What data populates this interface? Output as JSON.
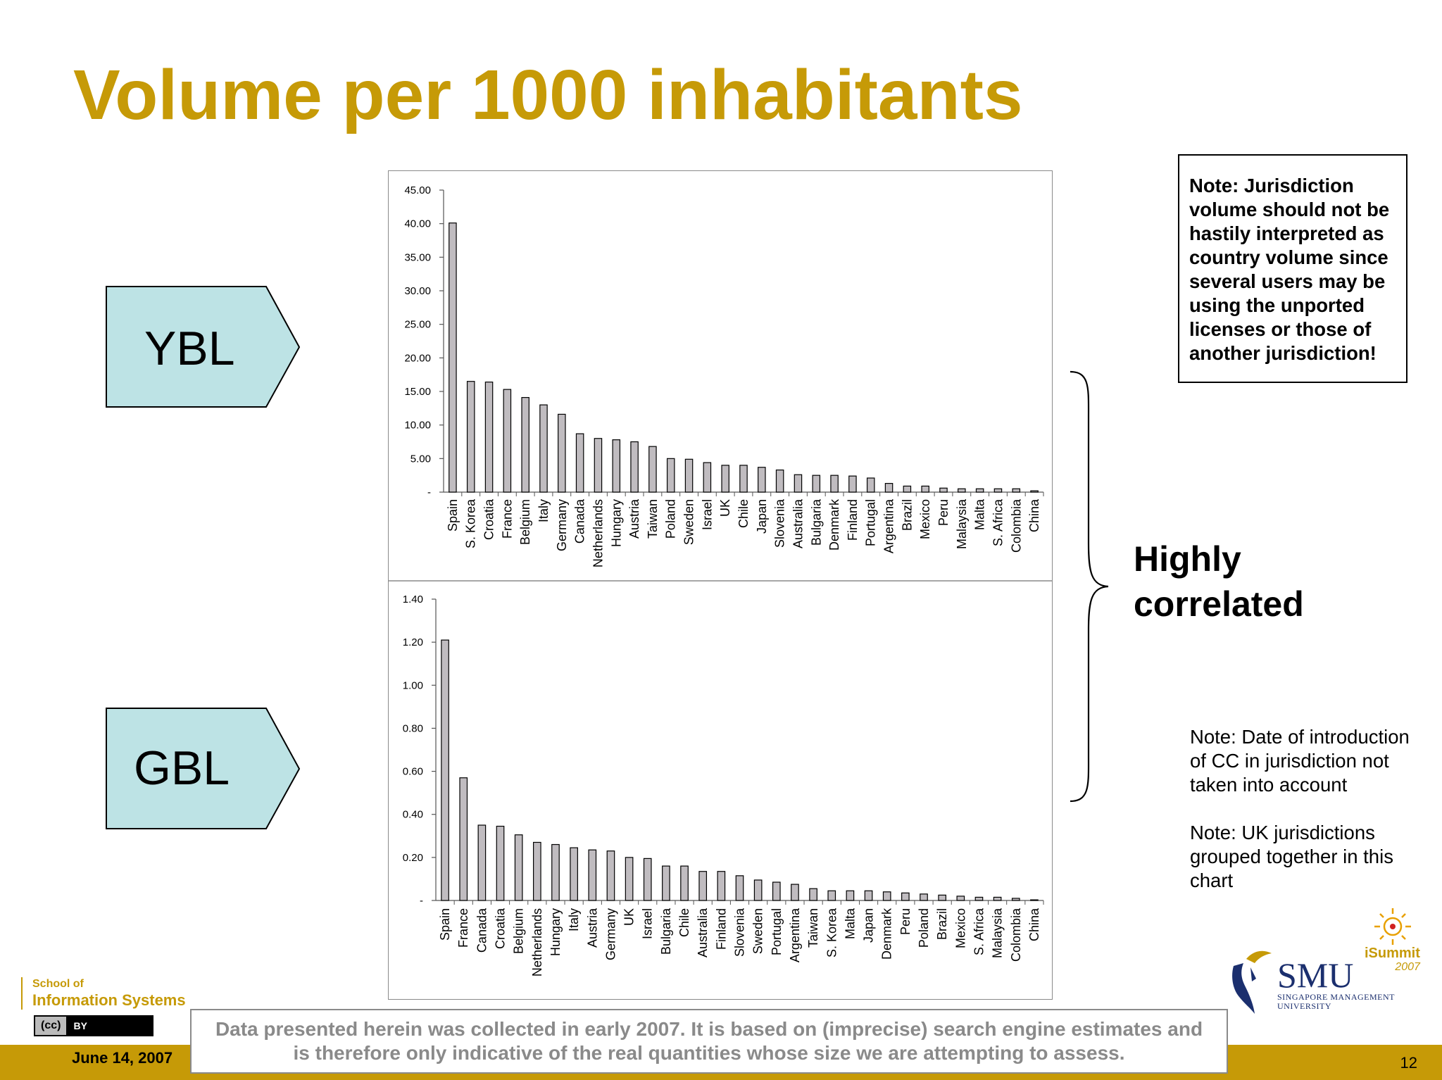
{
  "slide": {
    "title": "Volume per 1000 inhabitants",
    "ybl_label": "YBL",
    "gbl_label": "GBL",
    "note_box": "Note: Jurisdiction volume should not be hastily interpreted as country volume since several users may be using the unported licenses or those of another jurisdiction!",
    "highly_correlated": "Highly correlated",
    "note_date": "Note: Date of introduction of CC in jurisdiction not taken into account",
    "note_uk": "Note: UK jurisdictions grouped together in this chart",
    "disclaimer_line1": "Data presented herein was collected in early 2007. It is based on (imprecise) search engine estimates and",
    "disclaimer_line2": "is therefore only indicative of the real quantities whose size we are attempting to assess.",
    "footer_date": "June 14, 2007",
    "page_number": "12",
    "school_line1": "School of",
    "school_line2": "Information Systems",
    "cc_badge_left": "(cc)",
    "cc_badge_right": "BY",
    "smu_name": "SMU",
    "smu_sub1": "SINGAPORE MANAGEMENT",
    "smu_sub2": "UNIVERSITY",
    "isummit_name": "iSummit",
    "isummit_year": "2007"
  },
  "colors": {
    "title": "#c69a07",
    "arrow_fill": "#bde3e5",
    "bar_fill": "#c0bcc0",
    "footer": "#c69a07",
    "disclaimer_text": "#8a8a8a"
  },
  "chart_data": [
    {
      "type": "bar",
      "name": "YBL",
      "categories": [
        "Spain",
        "S. Korea",
        "Croatia",
        "France",
        "Belgium",
        "Italy",
        "Germany",
        "Canada",
        "Netherlands",
        "Hungary",
        "Austria",
        "Taiwan",
        "Poland",
        "Sweden",
        "Israel",
        "UK",
        "Chile",
        "Japan",
        "Slovenia",
        "Australia",
        "Bulgaria",
        "Denmark",
        "Finland",
        "Portugal",
        "Argentina",
        "Brazil",
        "Mexico",
        "Peru",
        "Malaysia",
        "Malta",
        "S. Africa",
        "Colombia",
        "China"
      ],
      "values": [
        40.1,
        16.5,
        16.4,
        15.3,
        14.1,
        13.0,
        11.6,
        8.7,
        8.0,
        7.8,
        7.5,
        6.8,
        5.0,
        4.9,
        4.4,
        4.0,
        4.0,
        3.7,
        3.3,
        2.6,
        2.5,
        2.5,
        2.4,
        2.1,
        1.3,
        0.9,
        0.9,
        0.6,
        0.5,
        0.5,
        0.5,
        0.5,
        0.2
      ],
      "yticks": [
        "-",
        "5.00",
        "10.00",
        "15.00",
        "20.00",
        "25.00",
        "30.00",
        "35.00",
        "40.00",
        "45.00"
      ],
      "ylim": [
        0,
        45
      ]
    },
    {
      "type": "bar",
      "name": "GBL",
      "categories": [
        "Spain",
        "France",
        "Canada",
        "Croatia",
        "Belgium",
        "Netherlands",
        "Hungary",
        "Italy",
        "Austria",
        "Germany",
        "UK",
        "Israel",
        "Bulgaria",
        "Chile",
        "Australia",
        "Finland",
        "Slovenia",
        "Sweden",
        "Portugal",
        "Argentina",
        "Taiwan",
        "S. Korea",
        "Malta",
        "Japan",
        "Denmark",
        "Peru",
        "Poland",
        "Brazil",
        "Mexico",
        "S. Africa",
        "Malaysia",
        "Colombia",
        "China"
      ],
      "values": [
        1.21,
        0.57,
        0.35,
        0.345,
        0.305,
        0.27,
        0.26,
        0.245,
        0.235,
        0.23,
        0.2,
        0.195,
        0.16,
        0.16,
        0.135,
        0.135,
        0.115,
        0.095,
        0.085,
        0.075,
        0.055,
        0.045,
        0.045,
        0.045,
        0.04,
        0.035,
        0.03,
        0.025,
        0.02,
        0.015,
        0.015,
        0.01,
        0.003
      ],
      "yticks": [
        "-",
        "0.20",
        "0.40",
        "0.60",
        "0.80",
        "1.00",
        "1.20",
        "1.40"
      ],
      "ylim": [
        0,
        1.4
      ]
    }
  ]
}
